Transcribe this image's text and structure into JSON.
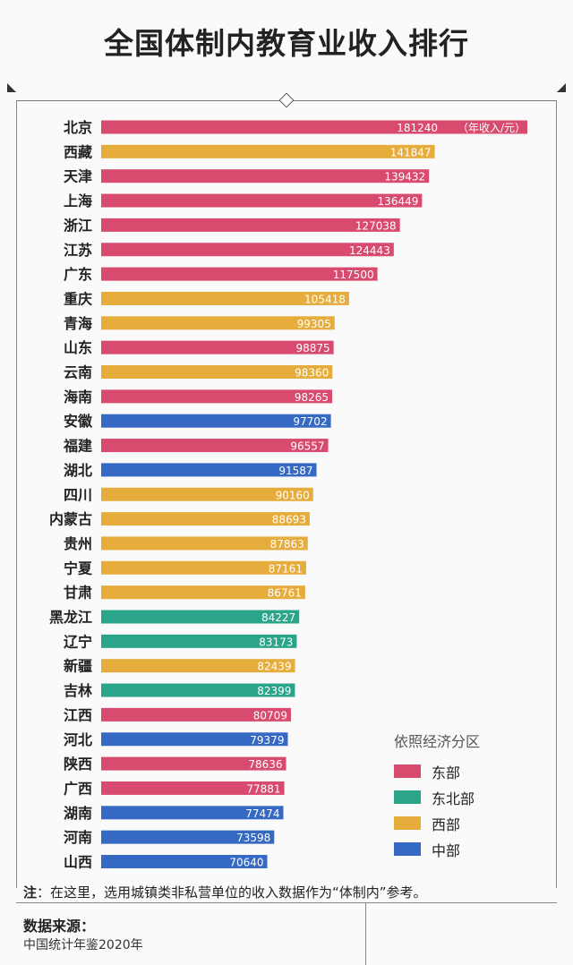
{
  "header": {
    "title": "全国体制内教育业收入排行"
  },
  "chart_data": {
    "type": "bar",
    "orientation": "horizontal",
    "title": "全国体制内教育业收入排行",
    "unit_label": "（年收入/元）",
    "region_colors": {
      "东部": "#d94b6e",
      "东北部": "#2aa58a",
      "西部": "#e6ac3c",
      "中部": "#3569c4"
    },
    "categories": [
      "北京",
      "西藏",
      "天津",
      "上海",
      "浙江",
      "江苏",
      "广东",
      "重庆",
      "青海",
      "山东",
      "云南",
      "海南",
      "安徽",
      "福建",
      "湖北",
      "四川",
      "内蒙古",
      "贵州",
      "宁夏",
      "甘肃",
      "黑龙江",
      "辽宁",
      "新疆",
      "吉林",
      "江西",
      "河北",
      "陕西",
      "广西",
      "湖南",
      "河南",
      "山西"
    ],
    "values": [
      181240,
      141847,
      139432,
      136449,
      127038,
      124443,
      117500,
      105418,
      99305,
      98875,
      98360,
      98265,
      97702,
      96557,
      91587,
      90160,
      88693,
      87863,
      87161,
      86761,
      84227,
      83173,
      82439,
      82399,
      80709,
      79379,
      78636,
      77881,
      77474,
      73598,
      70640
    ],
    "regions": [
      "东部",
      "西部",
      "东部",
      "东部",
      "东部",
      "东部",
      "东部",
      "西部",
      "西部",
      "东部",
      "西部",
      "东部",
      "中部",
      "东部",
      "中部",
      "西部",
      "西部",
      "西部",
      "西部",
      "西部",
      "东北部",
      "东北部",
      "西部",
      "东北部",
      "东部",
      "中部",
      "东部",
      "东部",
      "中部",
      "中部",
      "中部"
    ]
  },
  "legend": {
    "title": "依照经济分区",
    "items": [
      {
        "label": "东部",
        "color": "#d94b6e"
      },
      {
        "label": "东北部",
        "color": "#2aa58a"
      },
      {
        "label": "西部",
        "color": "#e6ac3c"
      },
      {
        "label": "中部",
        "color": "#3569c4"
      }
    ]
  },
  "note": {
    "prefix": "注",
    "text": "：在这里，选用城镇类非私营单位的收入数据作为“体制内”参考。"
  },
  "source": {
    "label": "数据来源：",
    "value": "中国统计年鉴2020年"
  }
}
